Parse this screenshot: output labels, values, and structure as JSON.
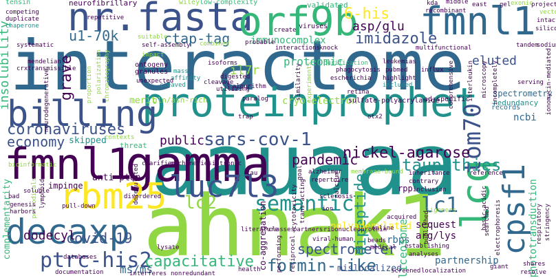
{
  "palette": {
    "violet": "#440154",
    "indigo": "#3b528b",
    "blue": "#31688e",
    "teal": "#21918c",
    "green": "#35b779",
    "lime": "#90d743",
    "yellow": "#fde725"
  },
  "words": [
    {
      "text": "interactome",
      "color": "#31688e"
    },
    {
      "text": "aauaaa",
      "color": "#21918c"
    },
    {
      "text": "ahnak1",
      "color": "#90d743"
    },
    {
      "text": "proteinprophet",
      "color": "#21918c"
    },
    {
      "text": "gamma",
      "color": "#440154"
    },
    {
      "text": "nr.fasta",
      "color": "#3b528b"
    },
    {
      "text": "orf9b",
      "color": "#35b779"
    },
    {
      "text": "fmnl1",
      "color": "#31688e"
    },
    {
      "text": "fmnl1",
      "color": "#440154"
    },
    {
      "text": "billing",
      "color": "#3b528b"
    },
    {
      "text": "decaxp",
      "color": "#31688e"
    },
    {
      "text": "lcq",
      "color": "#35b779"
    },
    {
      "text": "rbm25",
      "color": "#fde725"
    },
    {
      "text": "luc7l3",
      "color": "#3b528b"
    },
    {
      "text": "cpsf1",
      "color": "#31688e"
    },
    {
      "text": "tom70",
      "color": "#3b528b"
    },
    {
      "text": "sars-cov-1",
      "color": "#3b528b"
    },
    {
      "text": "semantic",
      "color": "#21918c"
    },
    {
      "text": "lc2",
      "color": "#90d743"
    },
    {
      "text": "lc1",
      "color": "#31688e"
    },
    {
      "text": "ptrc-his2",
      "color": "#3b528b"
    },
    {
      "text": "ctap-tag",
      "color": "#31688e"
    },
    {
      "text": "imidazole",
      "color": "#3b528b"
    },
    {
      "text": "6-his",
      "color": "#fde725"
    },
    {
      "text": "asp/glu",
      "color": "#440154"
    },
    {
      "text": "u1-70k",
      "color": "#31688e"
    },
    {
      "text": "coronaviruses",
      "color": "#3b528b"
    },
    {
      "text": "nickel-agarose",
      "color": "#440154"
    },
    {
      "text": "pandemic",
      "color": "#440154"
    },
    {
      "text": "economy",
      "color": "#3b528b"
    },
    {
      "text": "taupathies",
      "color": "#21918c"
    },
    {
      "text": "capacitative",
      "color": "#35b779"
    },
    {
      "text": "formin-like",
      "color": "#31688e"
    },
    {
      "text": "spectrometer",
      "color": "#3b528b"
    },
    {
      "text": "dipeptide",
      "color": "#21918c"
    },
    {
      "text": "covid-19",
      "color": "#3b528b"
    },
    {
      "text": "dodecyl",
      "color": "#440154"
    },
    {
      "text": "immunocomplex",
      "color": "#35b779"
    },
    {
      "text": "proteomic",
      "color": "#35b779"
    },
    {
      "text": "eluted",
      "color": "#3b528b"
    },
    {
      "text": "insolubility",
      "color": "#35b779"
    },
    {
      "text": "grave",
      "color": "#440154"
    },
    {
      "text": "il7r",
      "color": "#90d743"
    },
    {
      "text": "public",
      "color": "#440154"
    },
    {
      "text": "ms/ms",
      "color": "#31688e"
    },
    {
      "text": "cryo-electron",
      "color": "#90d743"
    },
    {
      "text": "spectrometry",
      "color": "#31688e"
    },
    {
      "text": "ncbi",
      "color": "#31688e"
    },
    {
      "text": "phototransduction",
      "color": "#35b779"
    },
    {
      "text": "rbps",
      "color": "#31688e"
    },
    {
      "text": "spliceosome",
      "color": "#35b779"
    },
    {
      "text": "polyadenylated",
      "color": "#fde725"
    },
    {
      "text": "sequest",
      "color": "#440154"
    },
    {
      "text": "arg/lys",
      "color": "#440154"
    },
    {
      "text": "co-aggregation",
      "color": "#440154"
    },
    {
      "text": "partnership",
      "color": "#31688e"
    },
    {
      "text": "complementarity",
      "color": "#35b779"
    },
    {
      "text": "mislocalized",
      "color": "#3b528b"
    },
    {
      "text": "anti-pten",
      "color": "#440154"
    },
    {
      "text": "impinge",
      "color": "#440154"
    },
    {
      "text": "skipped",
      "color": "#21918c"
    },
    {
      "text": "merit",
      "color": "#90d743"
    },
    {
      "text": "threat",
      "color": "#35b779"
    },
    {
      "text": "gln/asn-rich",
      "color": "#90d743"
    },
    {
      "text": "ontogeny",
      "color": "#440154"
    },
    {
      "text": "granules",
      "color": "#440154"
    },
    {
      "text": "sulfate-polyacrylamide",
      "color": "#440154"
    },
    {
      "text": "ad-specific",
      "color": "#440154"
    },
    {
      "text": "redundancy",
      "color": "#21918c"
    },
    {
      "text": "records",
      "color": "#31688e"
    },
    {
      "text": "validated",
      "color": "#35b779"
    },
    {
      "text": "neurofibrillary",
      "color": "#440154"
    },
    {
      "text": "tensin",
      "color": "#35b779"
    },
    {
      "text": "low-complexity",
      "color": "#35b779"
    },
    {
      "text": "wiley",
      "color": "#90d743"
    },
    {
      "text": "viruses",
      "color": "#440154"
    },
    {
      "text": "recombinant",
      "color": "#440154"
    },
    {
      "text": "middle",
      "color": "#440154"
    },
    {
      "text": "east",
      "color": "#440154"
    },
    {
      "text": "kda",
      "color": "#440154"
    },
    {
      "text": "gel",
      "color": "#440154"
    },
    {
      "text": "exonic",
      "color": "#90d743"
    },
    {
      "text": "project",
      "color": "#440154"
    },
    {
      "text": "vector",
      "color": "#90d743"
    },
    {
      "text": "intact",
      "color": "#440154"
    },
    {
      "text": "silico",
      "color": "#440154"
    },
    {
      "text": "tandem",
      "color": "#440154"
    },
    {
      "text": "sodium",
      "color": "#440154"
    },
    {
      "text": "ionomycin-mediated",
      "color": "#440154"
    },
    {
      "text": "multifunctional",
      "color": "#440154"
    },
    {
      "text": "knock",
      "color": "#440154"
    },
    {
      "text": "probable",
      "color": "#440154"
    },
    {
      "text": "combined",
      "color": "#90d743"
    },
    {
      "text": "self-assembly",
      "color": "#440154"
    },
    {
      "text": "suitable",
      "color": "#90d743"
    },
    {
      "text": "create",
      "color": "#440154"
    },
    {
      "text": "interactions",
      "color": "#440154"
    },
    {
      "text": "repetitive",
      "color": "#440154"
    },
    {
      "text": "competing",
      "color": "#440154"
    },
    {
      "text": "duplicate",
      "color": "#440154"
    },
    {
      "text": "chaperone",
      "color": "#21918c"
    },
    {
      "text": "systematic",
      "color": "#440154"
    },
    {
      "text": "mendelian",
      "color": "#440154"
    },
    {
      "text": "transmissible",
      "color": "#440154"
    },
    {
      "text": "crx",
      "color": "#440154"
    },
    {
      "text": "neurodegenerative",
      "color": "#440154"
    },
    {
      "text": "isoforms",
      "color": "#440154"
    },
    {
      "text": "purification",
      "color": "#35b779"
    },
    {
      "text": "leukemias",
      "color": "#440154"
    },
    {
      "text": "pubmed",
      "color": "#440154"
    },
    {
      "text": "influx",
      "color": "#440154"
    },
    {
      "text": "phagocytosis",
      "color": "#440154"
    },
    {
      "text": "escherichia",
      "color": "#440154"
    },
    {
      "text": "highlight",
      "color": "#440154"
    },
    {
      "text": "included",
      "color": "#21918c"
    },
    {
      "text": "digested",
      "color": "#440154"
    },
    {
      "text": "algorithm",
      "color": "#440154"
    },
    {
      "text": "cleavage",
      "color": "#440154"
    },
    {
      "text": "paralog",
      "color": "#440154"
    },
    {
      "text": "retina",
      "color": "#440154"
    },
    {
      "text": "cleaved",
      "color": "#21918c"
    },
    {
      "text": "affinity",
      "color": "#21918c"
    },
    {
      "text": "mass",
      "color": "#21918c"
    },
    {
      "text": "unexpected",
      "color": "#440154"
    },
    {
      "text": "serving",
      "color": "#440154"
    },
    {
      "text": "comprehensive",
      "color": "#440154"
    },
    {
      "text": "interleukin",
      "color": "#440154"
    },
    {
      "text": "microscopy",
      "color": "#440154"
    },
    {
      "text": "incompletely",
      "color": "#440154"
    },
    {
      "text": "polarization",
      "color": "#90d743"
    },
    {
      "text": "alzheimer",
      "color": "#440154"
    },
    {
      "text": "repertoire",
      "color": "#440154"
    },
    {
      "text": "membrane-bound",
      "color": "#90d743"
    },
    {
      "text": "inheritance",
      "color": "#440154"
    },
    {
      "text": "reference",
      "color": "#440154"
    },
    {
      "text": "contrary",
      "color": "#440154"
    },
    {
      "text": "inclusion",
      "color": "#440154"
    },
    {
      "text": "sclerosis",
      "color": "#440154"
    },
    {
      "text": "ion",
      "color": "#440154"
    },
    {
      "text": "trap",
      "color": "#440154"
    },
    {
      "text": "otx2",
      "color": "#440154"
    },
    {
      "text": "clarified",
      "color": "#440154"
    },
    {
      "text": "machineries",
      "color": "#440154"
    },
    {
      "text": "intronic",
      "color": "#440154"
    },
    {
      "text": "contexts",
      "color": "#90d743"
    },
    {
      "text": "tau",
      "color": "#440154"
    },
    {
      "text": "bioinformatic",
      "color": "#90d743"
    },
    {
      "text": "periodicals",
      "color": "#90d743"
    },
    {
      "text": "lymphoid",
      "color": "#440154"
    },
    {
      "text": "genesis",
      "color": "#440154"
    },
    {
      "text": "harbors",
      "color": "#440154"
    },
    {
      "text": "bad",
      "color": "#440154"
    },
    {
      "text": "soluble",
      "color": "#440154"
    },
    {
      "text": "pull-down",
      "color": "#440154"
    },
    {
      "text": "disordered",
      "color": "#440154"
    },
    {
      "text": "literature",
      "color": "#440154"
    },
    {
      "text": "classes",
      "color": "#440154"
    },
    {
      "text": "partners",
      "color": "#440154"
    },
    {
      "text": "ribonucleoprotein",
      "color": "#440154"
    },
    {
      "text": "viral-human",
      "color": "#440154"
    },
    {
      "text": "online",
      "color": "#440154"
    },
    {
      "text": "acquired",
      "color": "#440154"
    },
    {
      "text": "oligomers",
      "color": "#90d743"
    },
    {
      "text": "establishing",
      "color": "#440154"
    },
    {
      "text": "published",
      "color": "#440154"
    },
    {
      "text": "searched",
      "color": "#440154"
    },
    {
      "text": "beads",
      "color": "#440154"
    },
    {
      "text": "medical",
      "color": "#440154"
    },
    {
      "text": "analyses",
      "color": "#440154"
    },
    {
      "text": "localization",
      "color": "#440154"
    },
    {
      "text": "screened",
      "color": "#440154"
    },
    {
      "text": "lysate",
      "color": "#440154"
    },
    {
      "text": "databases",
      "color": "#440154"
    },
    {
      "text": "reciprocal",
      "color": "#440154"
    },
    {
      "text": "health",
      "color": "#440154"
    },
    {
      "text": "interferes",
      "color": "#440154"
    },
    {
      "text": "nonredundant",
      "color": "#440154"
    },
    {
      "text": "documentation",
      "color": "#440154"
    },
    {
      "text": "giant",
      "color": "#440154"
    },
    {
      "text": "resolve",
      "color": "#440154"
    },
    {
      "text": "shares",
      "color": "#440154"
    },
    {
      "text": "respiratory",
      "color": "#440154"
    },
    {
      "text": "stringency",
      "color": "#440154"
    },
    {
      "text": "electrophoresis",
      "color": "#440154"
    },
    {
      "text": "basic-acidic",
      "color": "#440154"
    },
    {
      "text": "cytotoxicity",
      "color": "#440154"
    },
    {
      "text": "trans-acting",
      "color": "#440154"
    },
    {
      "text": "calcium",
      "color": "#440154"
    },
    {
      "text": "goal",
      "color": "#440154"
    },
    {
      "text": "performing",
      "color": "#440154"
    },
    {
      "text": "utilizing",
      "color": "#440154"
    },
    {
      "text": "impact",
      "color": "#90d743"
    },
    {
      "text": "similarity",
      "color": "#440154"
    },
    {
      "text": "proportion",
      "color": "#90d743"
    },
    {
      "text": "experiments",
      "color": "#90d743"
    },
    {
      "text": "chromatography",
      "color": "#90d743"
    },
    {
      "text": "rpp",
      "color": "#440154"
    },
    {
      "text": "deregulated",
      "color": "#440154"
    }
  ]
}
